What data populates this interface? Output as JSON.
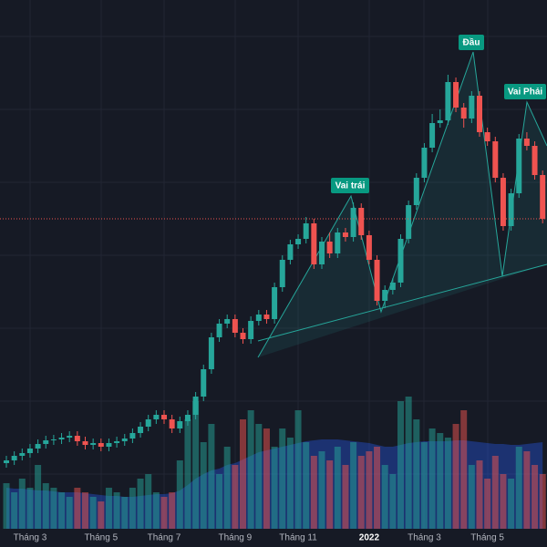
{
  "chart_data": {
    "type": "candlestick",
    "categories": [
      null,
      null,
      null,
      "Tháng 3",
      null,
      null,
      null,
      null,
      null,
      null,
      null,
      null,
      "Tháng 5",
      null,
      null,
      null,
      null,
      null,
      null,
      null,
      "Tháng 7",
      null,
      null,
      null,
      null,
      null,
      null,
      null,
      null,
      "Tháng 9",
      null,
      null,
      null,
      null,
      null,
      null,
      null,
      "Tháng 11",
      null,
      null,
      null,
      null,
      null,
      null,
      null,
      null,
      "2022",
      null,
      null,
      null,
      null,
      null,
      null,
      "Tháng 3",
      null,
      null,
      null,
      null,
      null,
      null,
      null,
      "Tháng 5",
      null,
      null,
      null,
      null,
      null,
      null,
      null
    ],
    "open": [
      92,
      95,
      100,
      103,
      108,
      113,
      117,
      118,
      120,
      122,
      116,
      112,
      114,
      110,
      114,
      116,
      119,
      125,
      132,
      140,
      145,
      140,
      130,
      138,
      145,
      165,
      195,
      230,
      245,
      250,
      235,
      228,
      248,
      255,
      250,
      285,
      315,
      332,
      338,
      355,
      310,
      335,
      322,
      345,
      340,
      372,
      342,
      315,
      270,
      282,
      290,
      338,
      375,
      405,
      438,
      465,
      468,
      510,
      482,
      470,
      495,
      455,
      445,
      405,
      352,
      388,
      448,
      440,
      408
    ],
    "high": [
      100,
      105,
      108,
      113,
      118,
      122,
      123,
      125,
      127,
      127,
      121,
      119,
      119,
      119,
      121,
      124,
      130,
      137,
      145,
      150,
      150,
      145,
      143,
      150,
      170,
      200,
      235,
      250,
      255,
      255,
      240,
      253,
      260,
      260,
      290,
      320,
      337,
      343,
      362,
      360,
      340,
      345,
      350,
      350,
      378,
      377,
      347,
      320,
      287,
      295,
      343,
      380,
      410,
      443,
      475,
      480,
      518,
      515,
      487,
      500,
      500,
      460,
      450,
      410,
      393,
      453,
      455,
      445,
      413
    ],
    "low": [
      87,
      90,
      95,
      98,
      103,
      108,
      112,
      113,
      115,
      111,
      107,
      107,
      105,
      105,
      109,
      111,
      114,
      120,
      127,
      135,
      135,
      125,
      125,
      133,
      140,
      160,
      190,
      225,
      240,
      230,
      223,
      223,
      243,
      245,
      245,
      280,
      310,
      327,
      333,
      305,
      305,
      317,
      317,
      335,
      335,
      337,
      310,
      265,
      262,
      277,
      285,
      333,
      370,
      400,
      433,
      460,
      463,
      477,
      460,
      465,
      450,
      440,
      400,
      347,
      347,
      383,
      435,
      403,
      355
    ],
    "close": [
      95,
      100,
      103,
      108,
      113,
      117,
      118,
      120,
      122,
      116,
      112,
      114,
      110,
      114,
      116,
      119,
      125,
      132,
      140,
      145,
      140,
      130,
      138,
      145,
      165,
      195,
      230,
      245,
      250,
      235,
      228,
      248,
      255,
      250,
      285,
      315,
      332,
      338,
      355,
      310,
      335,
      322,
      345,
      340,
      372,
      342,
      315,
      270,
      282,
      290,
      338,
      375,
      405,
      438,
      465,
      468,
      510,
      482,
      470,
      495,
      455,
      445,
      405,
      352,
      388,
      448,
      440,
      408,
      360
    ],
    "volume": [
      50,
      40,
      55,
      45,
      70,
      50,
      45,
      40,
      35,
      45,
      40,
      35,
      30,
      45,
      40,
      35,
      45,
      55,
      60,
      40,
      35,
      40,
      75,
      120,
      140,
      95,
      115,
      60,
      90,
      70,
      120,
      130,
      115,
      110,
      90,
      110,
      100,
      130,
      95,
      80,
      85,
      75,
      90,
      70,
      95,
      80,
      85,
      90,
      70,
      60,
      140,
      145,
      120,
      95,
      110,
      105,
      100,
      115,
      130,
      70,
      75,
      55,
      80,
      60,
      55,
      90,
      85,
      70,
      60
    ],
    "volume_ma": [
      45,
      44,
      44,
      43,
      42,
      42,
      41,
      40,
      40,
      40,
      39,
      38,
      37,
      36,
      36,
      35,
      35,
      36,
      37,
      38,
      38,
      39,
      42,
      48,
      55,
      60,
      64,
      66,
      70,
      72,
      76,
      80,
      84,
      86,
      88,
      90,
      92,
      94,
      96,
      97,
      98,
      98,
      98,
      97,
      96,
      95,
      94,
      92,
      90,
      90,
      92,
      94,
      95,
      96,
      96,
      96,
      96,
      97,
      97,
      96,
      95,
      94,
      93,
      93,
      92,
      92,
      93,
      94,
      95
    ],
    "ylim": [
      0,
      600
    ],
    "y2lim": [
      0,
      580
    ],
    "up_color": "#26a69a",
    "down_color": "#ef5350",
    "volume_ma_color": "#2962ff",
    "annotations": [
      "Vai trái",
      "Đầu",
      "Vai Phải"
    ]
  }
}
